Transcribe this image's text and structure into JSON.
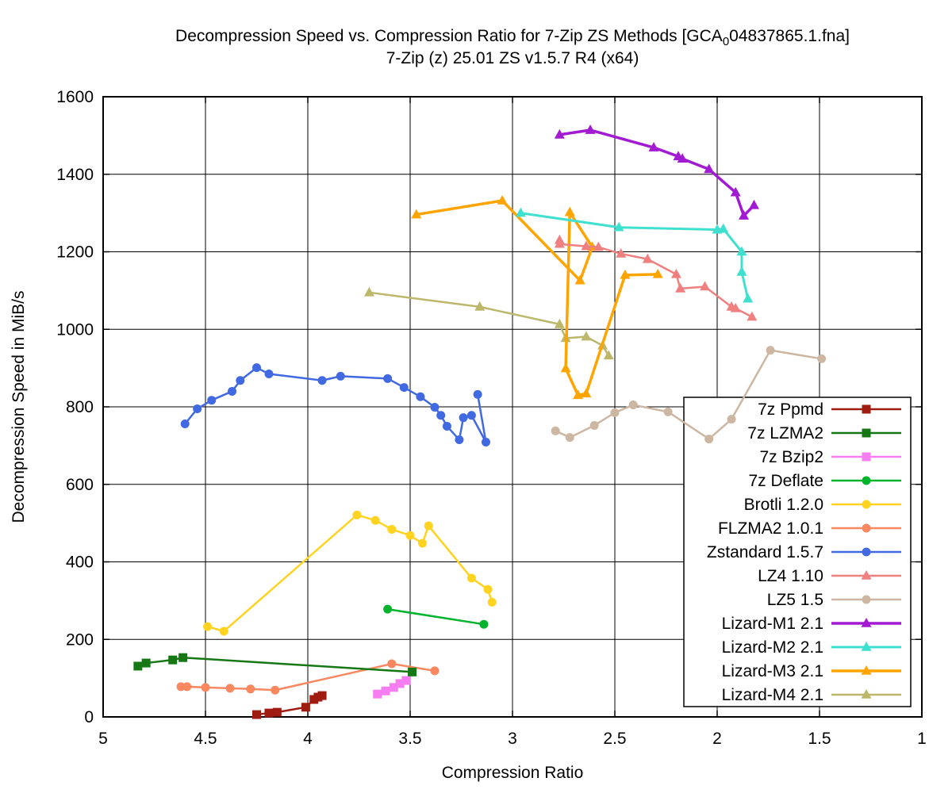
{
  "title": {
    "line1_pre": "Decompression Speed vs. Compression Ratio for 7-Zip ZS Methods [GCA",
    "line1_sub": "0",
    "line1_post": "04837865.1.fna]",
    "line2": "7-Zip (z) 25.01 ZS v1.5.7 R4 (x64)"
  },
  "axes": {
    "x_label": "Compression Ratio",
    "y_label": "Decompression Speed in MiB/s",
    "x_ticks": [
      5,
      4.5,
      4,
      3.5,
      3,
      2.5,
      2,
      1.5,
      1
    ],
    "x_tick_labels": [
      "5",
      "4.5",
      "4",
      "3.5",
      "3",
      "2.5",
      "2",
      "1.5",
      "1"
    ],
    "y_ticks": [
      0,
      200,
      400,
      600,
      800,
      1000,
      1200,
      1400,
      1600
    ],
    "y_tick_labels": [
      "0",
      "200",
      "400",
      "600",
      "800",
      "1000",
      "1200",
      "1400",
      "1600"
    ],
    "x_range": [
      5,
      1
    ],
    "y_range": [
      0,
      1600
    ],
    "x_axis_reversed": true,
    "grid": true
  },
  "colors": {
    "grid": "#000000",
    "border": "#000000",
    "background": "#ffffff",
    "legend_background": "#ffffff",
    "legend_border": "#000000"
  },
  "chart_data": {
    "type": "line",
    "xlabel": "Compression Ratio",
    "ylabel": "Decompression Speed in MiB/s",
    "xlim": [
      5,
      1
    ],
    "ylim": [
      0,
      1600
    ],
    "legend_position": "inside-right-bottom",
    "series": [
      {
        "name": "7z Ppmd",
        "color": "#9e1c12",
        "marker": "square",
        "line_width": 2.5,
        "points": [
          [
            4.25,
            6
          ],
          [
            4.19,
            10
          ],
          [
            4.15,
            12
          ],
          [
            4.01,
            25
          ],
          [
            3.97,
            45
          ],
          [
            3.95,
            51
          ],
          [
            3.93,
            55
          ]
        ]
      },
      {
        "name": "7z LZMA2",
        "color": "#157815",
        "marker": "square",
        "line_width": 2.5,
        "points": [
          [
            4.83,
            131
          ],
          [
            4.79,
            139
          ],
          [
            4.66,
            147
          ],
          [
            4.61,
            153
          ],
          [
            3.49,
            116
          ]
        ]
      },
      {
        "name": "7z Bzip2",
        "color": "#f77ef1",
        "marker": "square",
        "line_width": 2.5,
        "points": [
          [
            3.66,
            59
          ],
          [
            3.62,
            67
          ],
          [
            3.58,
            76
          ],
          [
            3.55,
            86
          ],
          [
            3.52,
            94
          ]
        ]
      },
      {
        "name": "7z Deflate",
        "color": "#00b32c",
        "marker": "circle",
        "line_width": 2.5,
        "points": [
          [
            3.61,
            278
          ],
          [
            3.14,
            239
          ]
        ]
      },
      {
        "name": "Brotli 1.2.0",
        "color": "#ffd320",
        "marker": "circle",
        "line_width": 2.5,
        "points": [
          [
            4.49,
            233
          ],
          [
            4.41,
            221
          ],
          [
            3.76,
            521
          ],
          [
            3.67,
            507
          ],
          [
            3.59,
            484
          ],
          [
            3.5,
            468
          ],
          [
            3.44,
            448
          ],
          [
            3.41,
            493
          ],
          [
            3.2,
            358
          ],
          [
            3.12,
            329
          ],
          [
            3.1,
            296
          ]
        ]
      },
      {
        "name": "FLZMA2 1.0.1",
        "color": "#f9875f",
        "marker": "circle",
        "line_width": 2.5,
        "points": [
          [
            4.62,
            78
          ],
          [
            4.59,
            78
          ],
          [
            4.5,
            76
          ],
          [
            4.38,
            74
          ],
          [
            4.28,
            72
          ],
          [
            4.16,
            69
          ],
          [
            3.59,
            137
          ],
          [
            3.38,
            119
          ]
        ]
      },
      {
        "name": "Zstandard 1.5.7",
        "color": "#4169e1",
        "marker": "circle",
        "line_width": 2.5,
        "points": [
          [
            4.6,
            756
          ],
          [
            4.54,
            795
          ],
          [
            4.47,
            817
          ],
          [
            4.37,
            840
          ],
          [
            4.33,
            868
          ],
          [
            4.25,
            901
          ],
          [
            4.19,
            885
          ],
          [
            3.93,
            868
          ],
          [
            3.84,
            879
          ],
          [
            3.61,
            873
          ],
          [
            3.53,
            850
          ],
          [
            3.45,
            826
          ],
          [
            3.38,
            799
          ],
          [
            3.35,
            778
          ],
          [
            3.32,
            750
          ],
          [
            3.26,
            715
          ],
          [
            3.24,
            772
          ],
          [
            3.2,
            778
          ],
          [
            3.13,
            709
          ],
          [
            3.17,
            832
          ]
        ]
      },
      {
        "name": "LZ4 1.10",
        "color": "#f08080",
        "marker": "triangle",
        "line_width": 2.5,
        "points": [
          [
            2.77,
            1230
          ],
          [
            2.77,
            1220
          ],
          [
            2.64,
            1214
          ],
          [
            2.58,
            1212
          ],
          [
            2.47,
            1195
          ],
          [
            2.34,
            1181
          ],
          [
            2.2,
            1142
          ],
          [
            2.18,
            1105
          ],
          [
            2.06,
            1110
          ],
          [
            1.93,
            1058
          ],
          [
            1.91,
            1054
          ],
          [
            1.83,
            1032
          ]
        ]
      },
      {
        "name": "LZ5 1.5",
        "color": "#cdb6a2",
        "marker": "circle",
        "line_width": 2.5,
        "points": [
          [
            2.79,
            738
          ],
          [
            2.72,
            721
          ],
          [
            2.6,
            752
          ],
          [
            2.5,
            785
          ],
          [
            2.41,
            805
          ],
          [
            2.24,
            787
          ],
          [
            2.04,
            717
          ],
          [
            1.93,
            768
          ],
          [
            1.74,
            946
          ],
          [
            1.49,
            924
          ]
        ]
      },
      {
        "name": "Lizard-M1 2.1",
        "color": "#a21ad1",
        "marker": "triangle",
        "line_width": 3.5,
        "points": [
          [
            2.77,
            1502
          ],
          [
            2.62,
            1514
          ],
          [
            2.31,
            1469
          ],
          [
            2.19,
            1446
          ],
          [
            2.17,
            1440
          ],
          [
            2.04,
            1413
          ],
          [
            1.91,
            1353
          ],
          [
            1.87,
            1293
          ],
          [
            1.82,
            1320
          ]
        ]
      },
      {
        "name": "Lizard-M2 2.1",
        "color": "#40e0d0",
        "marker": "triangle",
        "line_width": 3,
        "points": [
          [
            2.96,
            1300
          ],
          [
            2.48,
            1263
          ],
          [
            2.0,
            1257
          ],
          [
            1.97,
            1259
          ],
          [
            1.88,
            1200
          ],
          [
            1.88,
            1148
          ],
          [
            1.85,
            1079
          ]
        ]
      },
      {
        "name": "Lizard-M3 2.1",
        "color": "#ffa400",
        "marker": "triangle",
        "line_width": 3.5,
        "points": [
          [
            3.47,
            1296
          ],
          [
            3.05,
            1332
          ],
          [
            2.67,
            1126
          ],
          [
            2.61,
            1212
          ],
          [
            2.72,
            1302
          ],
          [
            2.74,
            899
          ],
          [
            2.68,
            830
          ],
          [
            2.64,
            834
          ],
          [
            2.45,
            1140
          ],
          [
            2.29,
            1142
          ]
        ]
      },
      {
        "name": "Lizard-M4 2.1",
        "color": "#bdb76b",
        "marker": "triangle",
        "line_width": 2.5,
        "points": [
          [
            3.7,
            1095
          ],
          [
            3.16,
            1058
          ],
          [
            2.77,
            1013
          ],
          [
            2.74,
            977
          ],
          [
            2.64,
            981
          ],
          [
            2.56,
            958
          ],
          [
            2.53,
            932
          ]
        ]
      }
    ]
  },
  "legend": {
    "entries": [
      "7z Ppmd",
      "7z LZMA2",
      "7z Bzip2",
      "7z Deflate",
      "Brotli 1.2.0",
      "FLZMA2 1.0.1",
      "Zstandard 1.5.7",
      "LZ4 1.10",
      "LZ5 1.5",
      "Lizard-M1 2.1",
      "Lizard-M2 2.1",
      "Lizard-M3 2.1",
      "Lizard-M4 2.1"
    ]
  }
}
